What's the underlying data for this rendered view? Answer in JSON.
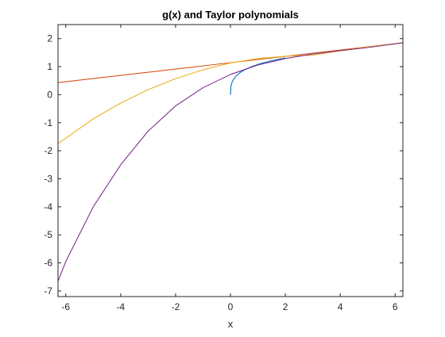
{
  "chart_data": {
    "type": "line",
    "title": "g(x) and Taylor polynomials",
    "xlabel": "x",
    "ylabel": "",
    "xlim": [
      -6.2832,
      6.2832
    ],
    "ylim": [
      -7.2,
      2.5
    ],
    "xticks": [
      -6,
      -4,
      -2,
      0,
      2,
      4,
      6
    ],
    "yticks": [
      -7,
      -6,
      -5,
      -4,
      -3,
      -2,
      -1,
      0,
      1,
      2
    ],
    "grid": false,
    "legend": "none",
    "series": [
      {
        "color": "#0072BD",
        "x": [
          0,
          0.02,
          0.05,
          0.1,
          0.2,
          0.3,
          0.45,
          0.6,
          0.8,
          1.0,
          1.25,
          1.5,
          1.75,
          2.0
        ],
        "y": [
          0,
          0.32,
          0.42,
          0.53,
          0.66,
          0.75,
          0.85,
          0.93,
          1.01,
          1.08,
          1.15,
          1.21,
          1.26,
          1.31
        ]
      },
      {
        "color": "#D95319",
        "x": [
          -6.2832,
          6.2832
        ],
        "y": [
          0.43,
          1.85
        ]
      },
      {
        "color": "#EDB120",
        "x": [
          -6.2832,
          -5,
          -4,
          -3,
          -2,
          -1,
          0,
          1,
          2,
          3,
          4,
          5,
          6.2832
        ],
        "y": [
          -1.75,
          -0.86,
          -0.3,
          0.18,
          0.57,
          0.89,
          1.13,
          1.29,
          1.37,
          1.41,
          1.56,
          1.7,
          1.85
        ]
      },
      {
        "color": "#7E2F8E",
        "x": [
          -6.2832,
          -6,
          -5,
          -4,
          -3,
          -2,
          -1,
          0,
          1,
          2,
          3,
          4,
          5,
          6.2832
        ],
        "y": [
          -6.65,
          -5.95,
          -4.0,
          -2.5,
          -1.3,
          -0.4,
          0.25,
          0.72,
          1.06,
          1.29,
          1.45,
          1.57,
          1.68,
          1.85
        ]
      }
    ]
  }
}
